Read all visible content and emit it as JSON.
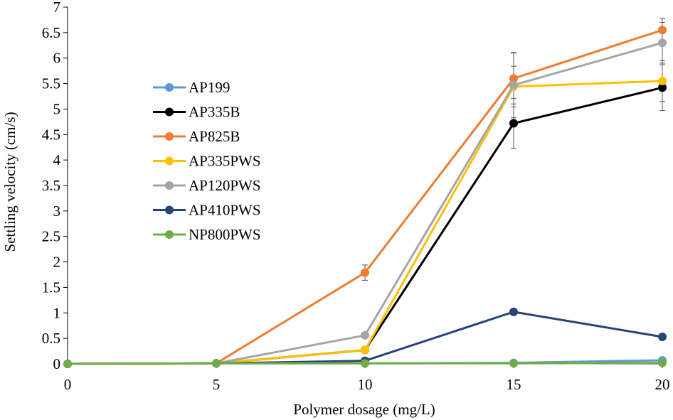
{
  "chart_data": {
    "type": "line",
    "title": "",
    "xlabel": "Polymer dosage (mg/L)",
    "ylabel": "Settling velocity (cm/s)",
    "x": [
      0,
      5,
      10,
      15,
      20
    ],
    "xlim": [
      0,
      20
    ],
    "ylim": [
      0,
      7
    ],
    "xticks": [
      "0",
      "5",
      "10",
      "15",
      "20"
    ],
    "yticks": [
      "0",
      "0.5",
      "1",
      "1.5",
      "2",
      "2.5",
      "3",
      "3.5",
      "4",
      "4.5",
      "5",
      "5.5",
      "6",
      "6.5",
      "7"
    ],
    "grid": false,
    "legend_position": "top-left",
    "series": [
      {
        "name": "AP199",
        "color": "#5B9BD5",
        "values": [
          0,
          0.01,
          0.01,
          0.02,
          0.07
        ],
        "errors": [
          0,
          0,
          0,
          0,
          0
        ]
      },
      {
        "name": "AP335B",
        "color": "#000000",
        "values": [
          0,
          0.01,
          0.27,
          4.72,
          5.42
        ],
        "errors": [
          0,
          0,
          0.03,
          0.49,
          0.45
        ]
      },
      {
        "name": "AP825B",
        "color": "#ED7D31",
        "values": [
          0,
          0.01,
          1.79,
          5.6,
          6.55
        ],
        "errors": [
          0,
          0,
          0.15,
          0.5,
          0.23
        ]
      },
      {
        "name": "AP335PWS",
        "color": "#FFC000",
        "values": [
          0,
          0.01,
          0.27,
          5.44,
          5.55
        ],
        "errors": [
          0,
          0,
          0,
          0.4,
          0.4
        ]
      },
      {
        "name": "AP120PWS",
        "color": "#A5A5A5",
        "values": [
          0,
          0.01,
          0.56,
          5.47,
          6.3
        ],
        "errors": [
          0,
          0,
          0,
          0.64,
          0.4
        ]
      },
      {
        "name": "AP410PWS",
        "color": "#264478",
        "values": [
          0,
          0.01,
          0.06,
          1.02,
          0.53
        ],
        "errors": [
          0,
          0,
          0,
          0.05,
          0
        ]
      },
      {
        "name": "NP800PWS",
        "color": "#70AD47",
        "values": [
          0,
          0.01,
          0.01,
          0.01,
          0.02
        ],
        "errors": [
          0,
          0,
          0,
          0,
          0
        ]
      }
    ]
  }
}
